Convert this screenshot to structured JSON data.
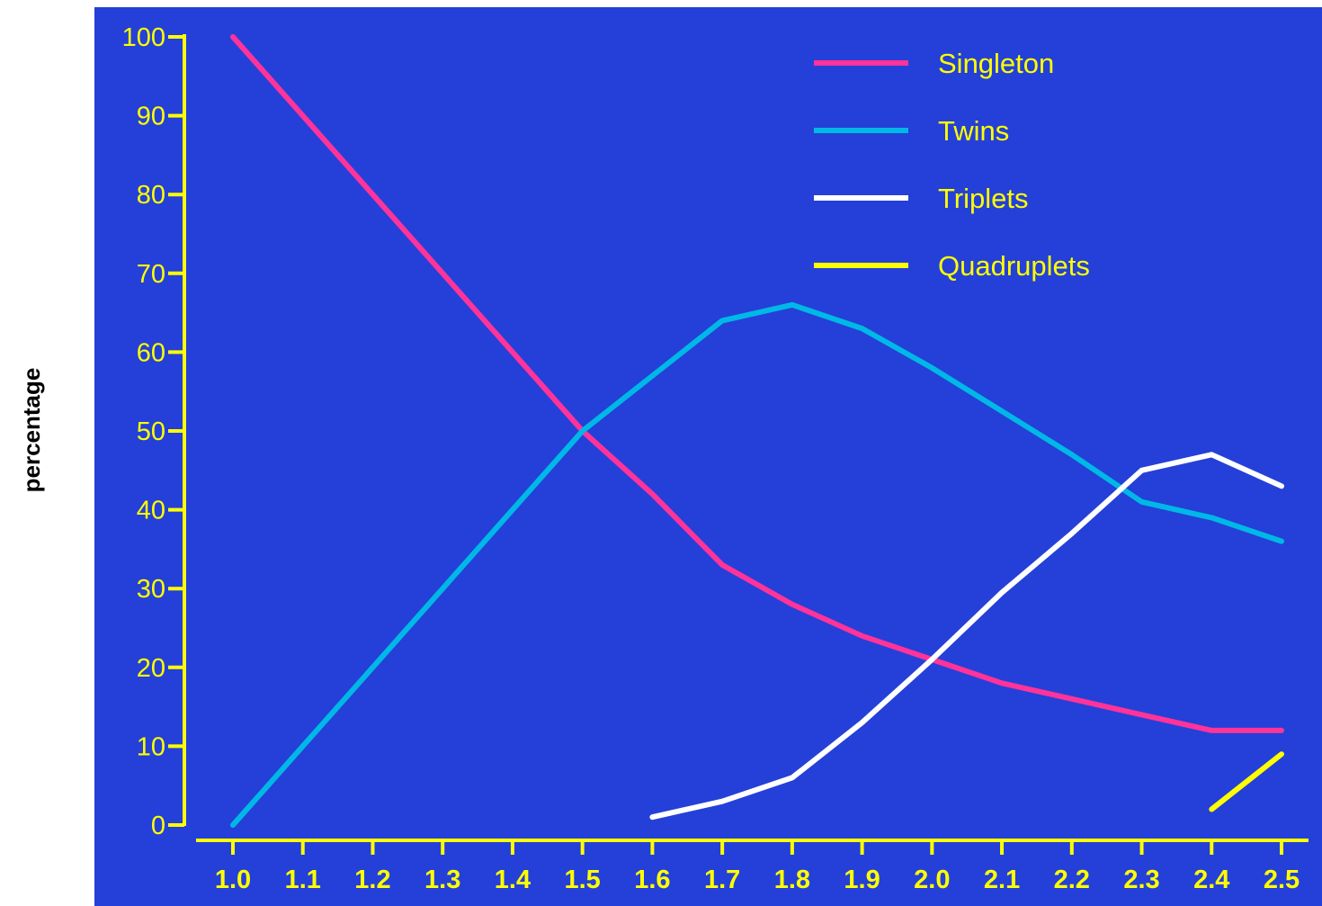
{
  "colors": {
    "background": "#2440d8",
    "axis": "#ffff00",
    "tick_text": "#ffff00"
  },
  "chart_data": {
    "type": "line",
    "title": "",
    "xlabel": "",
    "ylabel": "percentage",
    "xlim": [
      1.0,
      2.5
    ],
    "ylim": [
      0,
      100
    ],
    "grid": false,
    "legend_position": "top-right",
    "x": [
      1.0,
      1.1,
      1.2,
      1.3,
      1.4,
      1.5,
      1.6,
      1.7,
      1.8,
      1.9,
      2.0,
      2.1,
      2.2,
      2.3,
      2.4,
      2.5
    ],
    "x_tick_labels": [
      "1.0",
      "1.1",
      "1.2",
      "1.3",
      "1.4",
      "1.5",
      "1.6",
      "1.7",
      "1.8",
      "1.9",
      "2.0",
      "2.1",
      "2.2",
      "2.3",
      "2.4",
      "2.5"
    ],
    "y_ticks": [
      0,
      10,
      20,
      30,
      40,
      50,
      60,
      70,
      80,
      90,
      100
    ],
    "y_tick_labels": [
      "0",
      "10",
      "20",
      "30",
      "40",
      "50",
      "60",
      "70",
      "80",
      "90",
      "100"
    ],
    "series": [
      {
        "name": "Singleton",
        "color": "#ff3399",
        "values": [
          100,
          90,
          80,
          70,
          60,
          50,
          42,
          33,
          28,
          24,
          21,
          18,
          16,
          14,
          12,
          12
        ]
      },
      {
        "name": "Twins",
        "color": "#00b8e6",
        "values": [
          0,
          10,
          20,
          30,
          40,
          50,
          57,
          64,
          66,
          63,
          58,
          52.5,
          47,
          41,
          39,
          36
        ]
      },
      {
        "name": "Triplets",
        "color": "#ffffff",
        "values": [
          null,
          null,
          null,
          null,
          null,
          null,
          1,
          3,
          6,
          13,
          21,
          29.5,
          37,
          45,
          47,
          43
        ]
      },
      {
        "name": "Quadruplets",
        "color": "#ffff00",
        "values": [
          null,
          null,
          null,
          null,
          null,
          null,
          null,
          null,
          null,
          null,
          null,
          null,
          null,
          null,
          2,
          9
        ]
      }
    ]
  }
}
